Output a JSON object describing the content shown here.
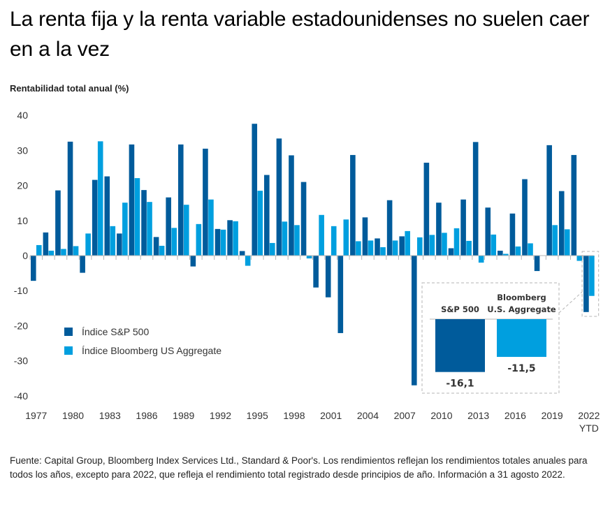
{
  "header": {
    "title": "La renta fija y la renta variable estadounidenses no suelen caer en a la vez",
    "y_axis_title": "Rentabilidad total anual (%)"
  },
  "colors": {
    "sp500": "#005B9B",
    "bloomberg": "#009FDF",
    "axis": "#b5b5b5",
    "dashed": "#b5b5b5"
  },
  "chart_data": {
    "type": "bar",
    "title": "La renta fija y la renta variable estadounidenses no suelen caer en a la vez",
    "xlabel": "",
    "ylabel": "Rentabilidad total anual (%)",
    "ylim": [
      -40,
      40
    ],
    "yticks": [
      40,
      30,
      20,
      10,
      0,
      -10,
      -20,
      -30,
      -40
    ],
    "grid": false,
    "legend_position": "bottom-left",
    "categories": [
      "1977",
      "1978",
      "1979",
      "1980",
      "1981",
      "1982",
      "1983",
      "1984",
      "1985",
      "1986",
      "1987",
      "1988",
      "1989",
      "1990",
      "1991",
      "1992",
      "1993",
      "1994",
      "1995",
      "1996",
      "1997",
      "1998",
      "1999",
      "2000",
      "2001",
      "2002",
      "2003",
      "2004",
      "2005",
      "2006",
      "2007",
      "2008",
      "2009",
      "2010",
      "2011",
      "2012",
      "2013",
      "2014",
      "2015",
      "2016",
      "2017",
      "2018",
      "2019",
      "2020",
      "2021",
      "2022 YTD"
    ],
    "xtick_labels": [
      {
        "index": 0,
        "label": "1977"
      },
      {
        "index": 3,
        "label": "1980"
      },
      {
        "index": 6,
        "label": "1983"
      },
      {
        "index": 9,
        "label": "1986"
      },
      {
        "index": 12,
        "label": "1989"
      },
      {
        "index": 15,
        "label": "1992"
      },
      {
        "index": 18,
        "label": "1995"
      },
      {
        "index": 21,
        "label": "1998"
      },
      {
        "index": 24,
        "label": "2001"
      },
      {
        "index": 27,
        "label": "2004"
      },
      {
        "index": 30,
        "label": "2007"
      },
      {
        "index": 33,
        "label": "2010"
      },
      {
        "index": 36,
        "label": "2013"
      },
      {
        "index": 39,
        "label": "2016"
      },
      {
        "index": 42,
        "label": "2019"
      },
      {
        "index": 45,
        "label": "2022",
        "sublabel": "YTD"
      }
    ],
    "series": [
      {
        "name": "Índice S&P 500",
        "key": "sp500",
        "values": [
          -7.2,
          6.6,
          18.6,
          32.5,
          -4.9,
          21.6,
          22.6,
          6.3,
          31.7,
          18.7,
          5.3,
          16.6,
          31.7,
          -3.1,
          30.5,
          7.6,
          10.1,
          1.3,
          37.6,
          23.0,
          33.4,
          28.6,
          21.0,
          -9.1,
          -11.9,
          -22.1,
          28.7,
          10.9,
          4.9,
          15.8,
          5.5,
          -37.0,
          26.5,
          15.1,
          2.1,
          16.0,
          32.4,
          13.7,
          1.4,
          12.0,
          21.8,
          -4.4,
          31.5,
          18.4,
          28.7,
          -16.1
        ]
      },
      {
        "name": "Índice Bloomberg US Aggregate",
        "key": "bloomberg",
        "values": [
          3.0,
          1.4,
          1.9,
          2.7,
          6.3,
          32.6,
          8.4,
          15.1,
          22.1,
          15.3,
          2.8,
          7.9,
          14.5,
          9.0,
          16.0,
          7.4,
          9.8,
          -2.9,
          18.5,
          3.6,
          9.7,
          8.7,
          -0.8,
          11.6,
          8.4,
          10.3,
          4.1,
          4.3,
          2.4,
          4.3,
          7.0,
          5.2,
          5.9,
          6.5,
          7.8,
          4.2,
          -2.0,
          6.0,
          0.5,
          2.6,
          3.5,
          0.0,
          8.7,
          7.5,
          -1.5,
          -11.5
        ]
      }
    ],
    "inset": {
      "labels": [
        "S&P 500",
        "Bloomberg U.S. Aggregate"
      ],
      "label_lines": [
        [
          "S&P 500"
        ],
        [
          "Bloomberg",
          "U.S. Aggregate"
        ]
      ],
      "values": [
        -16.1,
        -11.5
      ],
      "value_labels": [
        "-16,1",
        "-11,5"
      ]
    }
  },
  "legend": {
    "items": [
      {
        "label": "Índice S&P 500",
        "key": "sp500"
      },
      {
        "label": "Índice Bloomberg US Aggregate",
        "key": "bloomberg"
      }
    ]
  },
  "footnote": "Fuente: Capital Group, Bloomberg Index Services Ltd., Standard & Poor's. Los rendimientos reflejan los rendimientos totales anuales para todos los años, excepto para 2022, que refleja el rendimiento total registrado desde principios de año. Información a 31 agosto 2022."
}
